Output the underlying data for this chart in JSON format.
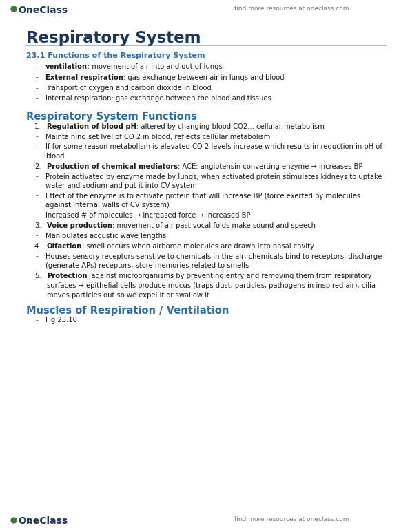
{
  "bg_color": "#ffffff",
  "blue_heading": "#2e6da4",
  "dark_title": "#1c3558",
  "body_color": "#1a1a1a",
  "gray_color": "#777777",
  "green_dot": "#3d7a3d",
  "oneclass_color": "#1c3558",
  "rule_color": "#92b4cc",
  "page_title": "Respiratory System",
  "top_right": "find more resources at oneclass.com",
  "page_num": "1",
  "sec1_title": "23.1 Functions of the Respiratory System",
  "sec2_title": "Respiratory System Functions",
  "sec3_title": "Muscles of Respiration / Ventilation",
  "sec1_lines": [
    {
      "bold": "ventilation",
      "rest": ": movement of air into and out of lungs"
    },
    {
      "bold": "External respiration",
      "rest": ": gas exchange between air in lungs and blood"
    },
    {
      "bold": "",
      "rest": "Transport of oxygen and carbon dioxide in blood"
    },
    {
      "bold": "",
      "rest": "Internal respiration: gas exchange between the blood and tissues"
    }
  ],
  "sec2_numbered": [
    {
      "num": "1.",
      "bold": "Regulation of blood pH",
      "rest": ": altered by changing blood CO2... cellular metabolism",
      "subs": [
        "Maintaining set lvel of CO 2 in blood, reflects cellular metabolism",
        "If for some reason metabolism is elevated CO 2 levels increase which results in reduction in pH of blood"
      ]
    },
    {
      "num": "2.",
      "bold": "Production of chemical mediators",
      "rest": ": ACE: angiotensin converting enzyme → increases BP",
      "subs": [
        "Protein activated by enzyme made by lungs, when activated protein stimulates kidneys to uptake water and sodium and put it into CV system",
        "Effect of the enzyme is to activate protein that will increase BP (force exerted by molecules against internal walls of CV system)",
        "Increased # of molecules → increased force → increased BP"
      ]
    },
    {
      "num": "3.",
      "bold": "Voice production",
      "rest": ": movement of air past vocal folds make sound and speech",
      "subs": [
        "Manipulates acoustic wave lengths"
      ]
    },
    {
      "num": "4.",
      "bold": "Olfaction",
      "rest": ": smell occurs when airborne molecules are drawn into nasal cavity",
      "subs": [
        "Houses sensory receptors senstive to chemicals in the air; chemicals bind to receptors, discharge (generate APs) receptors, store memories related to smells"
      ]
    },
    {
      "num": "5.",
      "bold": "Protection",
      "rest": ": against microorganisms by preventing entry and removing them from respiratory surfaces → epithelial cells produce mucus (traps dust, particles, pathogens in inspired air), cilia moves particles out so we expel it or swallow it",
      "subs": []
    }
  ],
  "sec3_subs": [
    "Fig 23.10"
  ]
}
